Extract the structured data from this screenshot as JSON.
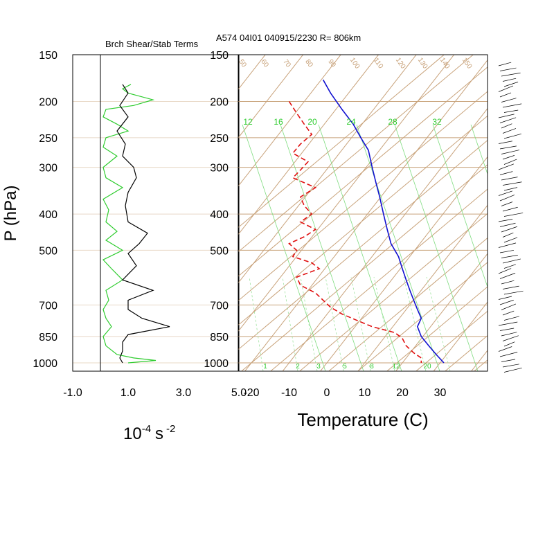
{
  "header": {
    "left_title": "Brch Shear/Stab Terms",
    "right_title": "A574 04I01 040915/2230 R= 806km"
  },
  "colors": {
    "tan": "#c8a27a",
    "green": "#2ecc2e",
    "red": "#e01010",
    "blue": "#1010d0",
    "black": "#000000"
  },
  "chart_data": [
    {
      "type": "line",
      "panel": "left",
      "title": "Brch Shear/Stab Terms",
      "ylabel": "P (hPa)",
      "xlabel_base": "10",
      "xlabel_exp1": "-4",
      "xlabel_unit": "s",
      "xlabel_exp2": "-2",
      "xlim": [
        -1.0,
        5.0
      ],
      "ylim": [
        1050,
        150
      ],
      "y_scale": "log",
      "x_ticks": [
        "-1.0",
        "1.0",
        "3.0",
        "5.0"
      ],
      "x_tick_values": [
        -1.0,
        1.0,
        3.0,
        5.0
      ],
      "p_levels": [
        150,
        200,
        250,
        300,
        400,
        500,
        700,
        850,
        1000
      ],
      "series": [
        {
          "color": "green",
          "points": [
            [
              1.1,
              180
            ],
            [
              0.8,
              185
            ],
            [
              1.0,
              190
            ],
            [
              1.9,
              198
            ],
            [
              1.2,
              205
            ],
            [
              0.2,
              210
            ],
            [
              0.1,
              220
            ],
            [
              0.6,
              230
            ],
            [
              1.0,
              240
            ],
            [
              0.2,
              250
            ],
            [
              0.1,
              265
            ],
            [
              0.6,
              280
            ],
            [
              0.1,
              300
            ],
            [
              0.2,
              320
            ],
            [
              0.8,
              340
            ],
            [
              0.1,
              365
            ],
            [
              0.3,
              390
            ],
            [
              0.2,
              420
            ],
            [
              0.6,
              445
            ],
            [
              0.2,
              470
            ],
            [
              0.8,
              500
            ],
            [
              0.1,
              530
            ],
            [
              0.4,
              560
            ],
            [
              0.8,
              600
            ],
            [
              0.2,
              640
            ],
            [
              0.3,
              680
            ],
            [
              0.1,
              720
            ],
            [
              0.2,
              760
            ],
            [
              0.4,
              800
            ],
            [
              0.1,
              850
            ],
            [
              0.2,
              900
            ],
            [
              0.6,
              950
            ],
            [
              1.2,
              970
            ],
            [
              2.0,
              985
            ],
            [
              1.0,
              1000
            ]
          ]
        },
        {
          "color": "black",
          "points": [
            [
              0.8,
              180
            ],
            [
              1.0,
              190
            ],
            [
              0.7,
              205
            ],
            [
              1.0,
              220
            ],
            [
              0.6,
              240
            ],
            [
              0.9,
              260
            ],
            [
              0.8,
              280
            ],
            [
              1.2,
              300
            ],
            [
              1.3,
              320
            ],
            [
              1.0,
              350
            ],
            [
              0.9,
              380
            ],
            [
              1.0,
              420
            ],
            [
              1.7,
              450
            ],
            [
              1.4,
              480
            ],
            [
              1.0,
              510
            ],
            [
              1.3,
              550
            ],
            [
              0.8,
              600
            ],
            [
              1.9,
              640
            ],
            [
              1.0,
              680
            ],
            [
              1.0,
              720
            ],
            [
              1.5,
              760
            ],
            [
              2.5,
              800
            ],
            [
              1.0,
              840
            ],
            [
              0.8,
              880
            ],
            [
              0.8,
              930
            ],
            [
              0.7,
              970
            ],
            [
              0.8,
              1000
            ]
          ]
        }
      ]
    },
    {
      "type": "line",
      "panel": "skewt",
      "title": "A574 04I01 040915/2230 R= 806km",
      "xlabel": "Temperature (C)",
      "xlim": [
        -24,
        42
      ],
      "ylim": [
        1050,
        150
      ],
      "y_scale": "log",
      "x_ticks": [
        "-20",
        "-10",
        "0",
        "10",
        "20",
        "30"
      ],
      "x_tick_values": [
        -20,
        -10,
        0,
        10,
        20,
        30
      ],
      "p_levels": [
        150,
        200,
        250,
        300,
        400,
        500,
        700,
        850,
        1000
      ],
      "mixing_ratio_labels_top": [
        "12",
        "16",
        "20",
        "24",
        "28",
        "32"
      ],
      "mixing_ratio_labels_bottom": [
        "1",
        "2",
        "3",
        "5",
        "8",
        "12",
        "20"
      ],
      "isotherm_labels_top": [
        "50",
        "60",
        "70",
        "80",
        "90",
        "100",
        "110",
        "120",
        "130",
        "140",
        "150"
      ],
      "series": [
        {
          "name": "",
          "color": "blue",
          "dash": false,
          "points": [
            [
              -1,
              175
            ],
            [
              1,
              190
            ],
            [
              4,
              210
            ],
            [
              7,
              230
            ],
            [
              9,
              250
            ],
            [
              11,
              270
            ],
            [
              12,
              300
            ],
            [
              13,
              330
            ],
            [
              14,
              360
            ],
            [
              15,
              400
            ],
            [
              16,
              440
            ],
            [
              17,
              480
            ],
            [
              19,
              520
            ],
            [
              20,
              560
            ],
            [
              21,
              600
            ],
            [
              22,
              640
            ],
            [
              23,
              680
            ],
            [
              24,
              720
            ],
            [
              25,
              760
            ],
            [
              24,
              800
            ],
            [
              25,
              850
            ],
            [
              27,
              900
            ],
            [
              29,
              950
            ],
            [
              31,
              1000
            ]
          ]
        },
        {
          "name": "",
          "color": "red",
          "dash": true,
          "points": [
            [
              -10,
              200
            ],
            [
              -8,
              215
            ],
            [
              -6,
              230
            ],
            [
              -4,
              245
            ],
            [
              -7,
              260
            ],
            [
              -9,
              275
            ],
            [
              -5,
              290
            ],
            [
              -7,
              305
            ],
            [
              -9,
              320
            ],
            [
              -3,
              340
            ],
            [
              -7,
              360
            ],
            [
              -6,
              380
            ],
            [
              -4,
              400
            ],
            [
              -7,
              420
            ],
            [
              -3,
              440
            ],
            [
              -6,
              460
            ],
            [
              -10,
              480
            ],
            [
              -8,
              500
            ],
            [
              -9,
              520
            ],
            [
              -4,
              540
            ],
            [
              -2,
              560
            ],
            [
              -8,
              590
            ],
            [
              -7,
              620
            ],
            [
              -3,
              650
            ],
            [
              -1,
              680
            ],
            [
              1,
              710
            ],
            [
              4,
              740
            ],
            [
              8,
              770
            ],
            [
              12,
              800
            ],
            [
              18,
              830
            ],
            [
              20,
              860
            ],
            [
              21,
              900
            ],
            [
              23,
              940
            ],
            [
              25,
              970
            ],
            [
              25,
              1000
            ]
          ]
        }
      ]
    }
  ]
}
